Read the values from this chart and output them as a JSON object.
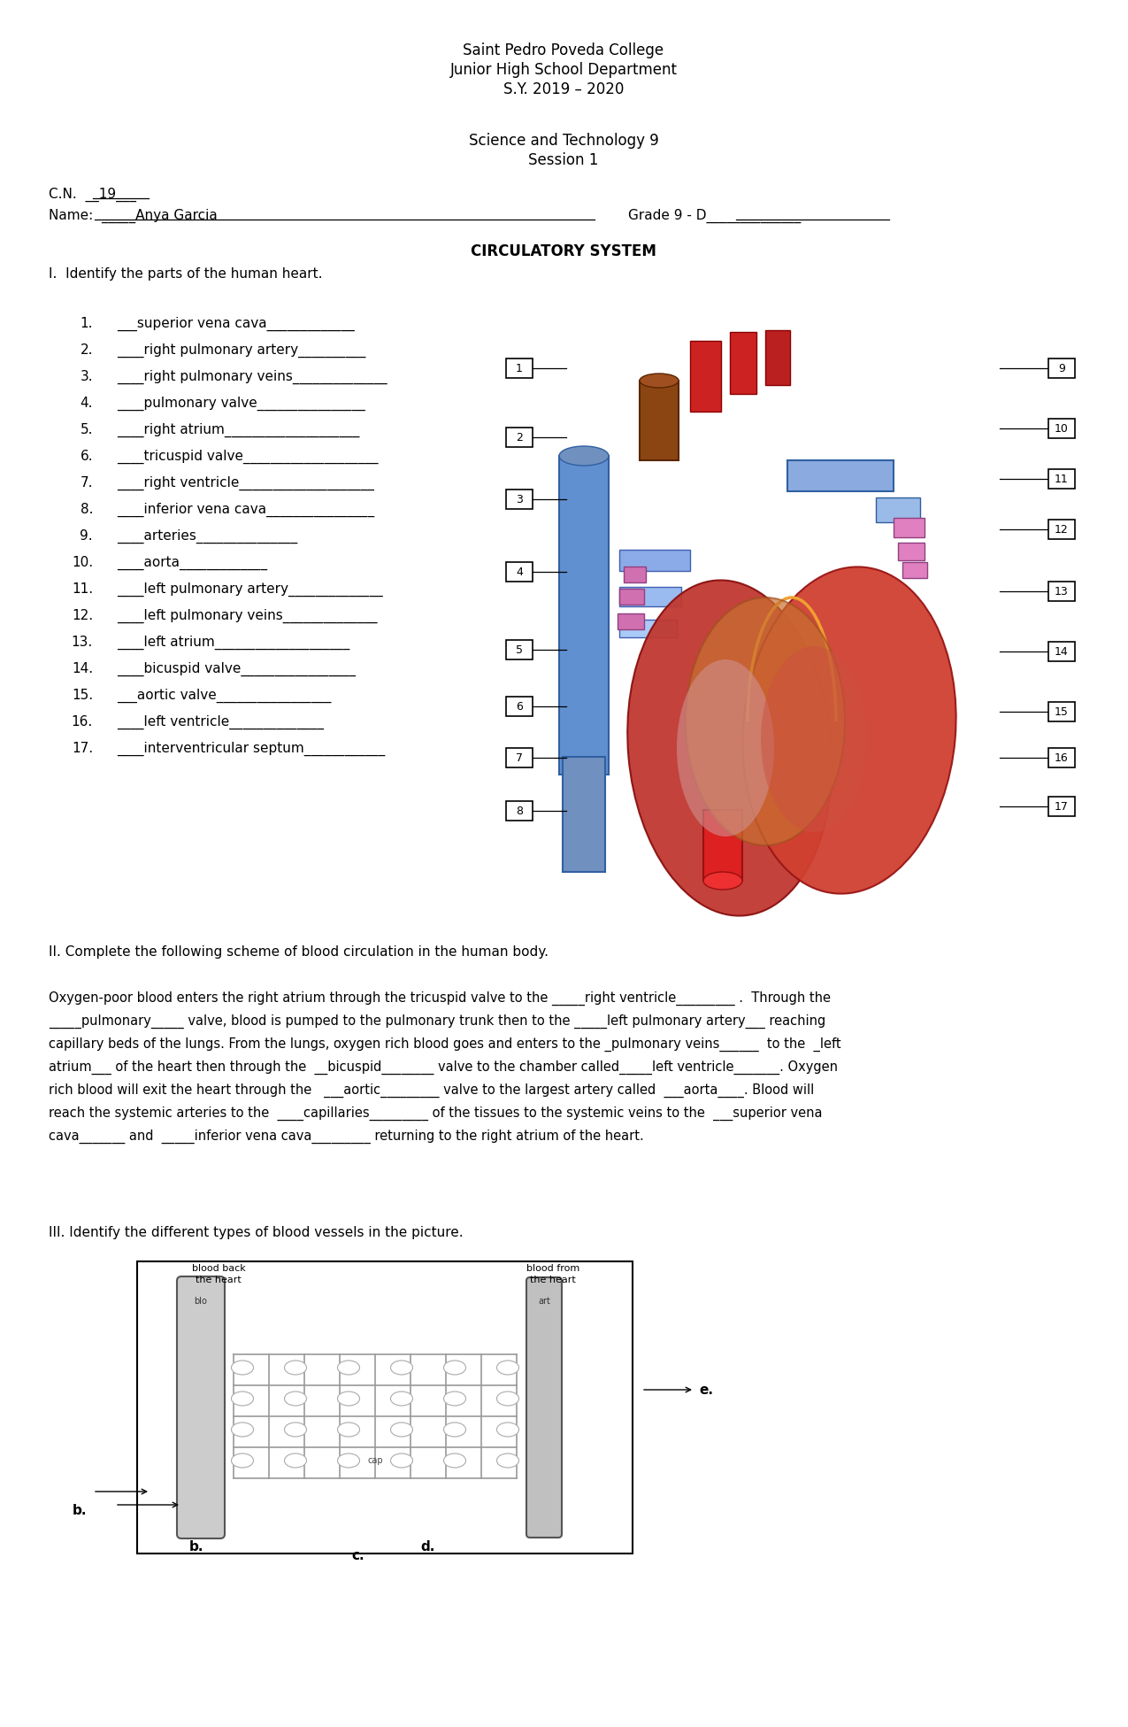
{
  "title1": "Saint Pedro Poveda College",
  "title2": "Junior High School Department",
  "title3": "S.Y. 2019 – 2020",
  "subject": "Science and Technology 9",
  "session": "Session 1",
  "cn_text": "C.N.  __19___",
  "name_prefix": "Name:  _____Anya Garcia",
  "grade_text": "Grade 9 - D______________",
  "section_title": "CIRCULATORY SYSTEM",
  "part1_header": "I.  Identify the parts of the human heart.",
  "items": [
    [
      "1.",
      "___superior vena cava_____________"
    ],
    [
      "2.",
      "____right pulmonary artery__________"
    ],
    [
      "3.",
      "____right pulmonary veins______________"
    ],
    [
      "4.",
      "____pulmonary valve________________"
    ],
    [
      "5.",
      "____right atrium____________________"
    ],
    [
      "6.",
      "____tricuspid valve____________________"
    ],
    [
      "7.",
      "____right ventricle____________________"
    ],
    [
      "8.",
      "____inferior vena cava________________"
    ],
    [
      "9.",
      "____arteries_______________"
    ],
    [
      "10.",
      "____aorta_____________"
    ],
    [
      "11.",
      "____left pulmonary artery______________"
    ],
    [
      "12.",
      "____left pulmonary veins______________"
    ],
    [
      "13.",
      "____left atrium____________________"
    ],
    [
      "14.",
      "____bicuspid valve_________________"
    ],
    [
      "15.",
      "___aortic valve_________________"
    ],
    [
      "16.",
      "____left ventricle______________"
    ],
    [
      "17.",
      "____interventricular septum____________"
    ]
  ],
  "part2_header": "II. Complete the following scheme of blood circulation in the human body.",
  "para_lines": [
    "Oxygen-poor blood enters the right atrium through the tricuspid valve to the _____right ventricle_________ .  Through the",
    "_____pulmonary_____ valve, blood is pumped to the pulmonary trunk then to the _____left pulmonary artery___ reaching",
    "capillary beds of the lungs. From the lungs, oxygen rich blood goes and enters to the _pulmonary veins______  to the  _left",
    "atrium___ of the heart then through the  __bicuspid________ valve to the chamber called_____left ventricle_______. Oxygen",
    "rich blood will exit the heart through the   ___aortic_________ valve to the largest artery called  ___aorta____. Blood will",
    "reach the systemic arteries to the  ____capillaries_________ of the tissues to the systemic veins to the  ___superior vena",
    "cava_______ and  _____inferior vena cava_________ returning to the right atrium of the heart."
  ],
  "part3_header": "III. Identify the different types of blood vessels in the picture.",
  "bg_color": "#ffffff"
}
